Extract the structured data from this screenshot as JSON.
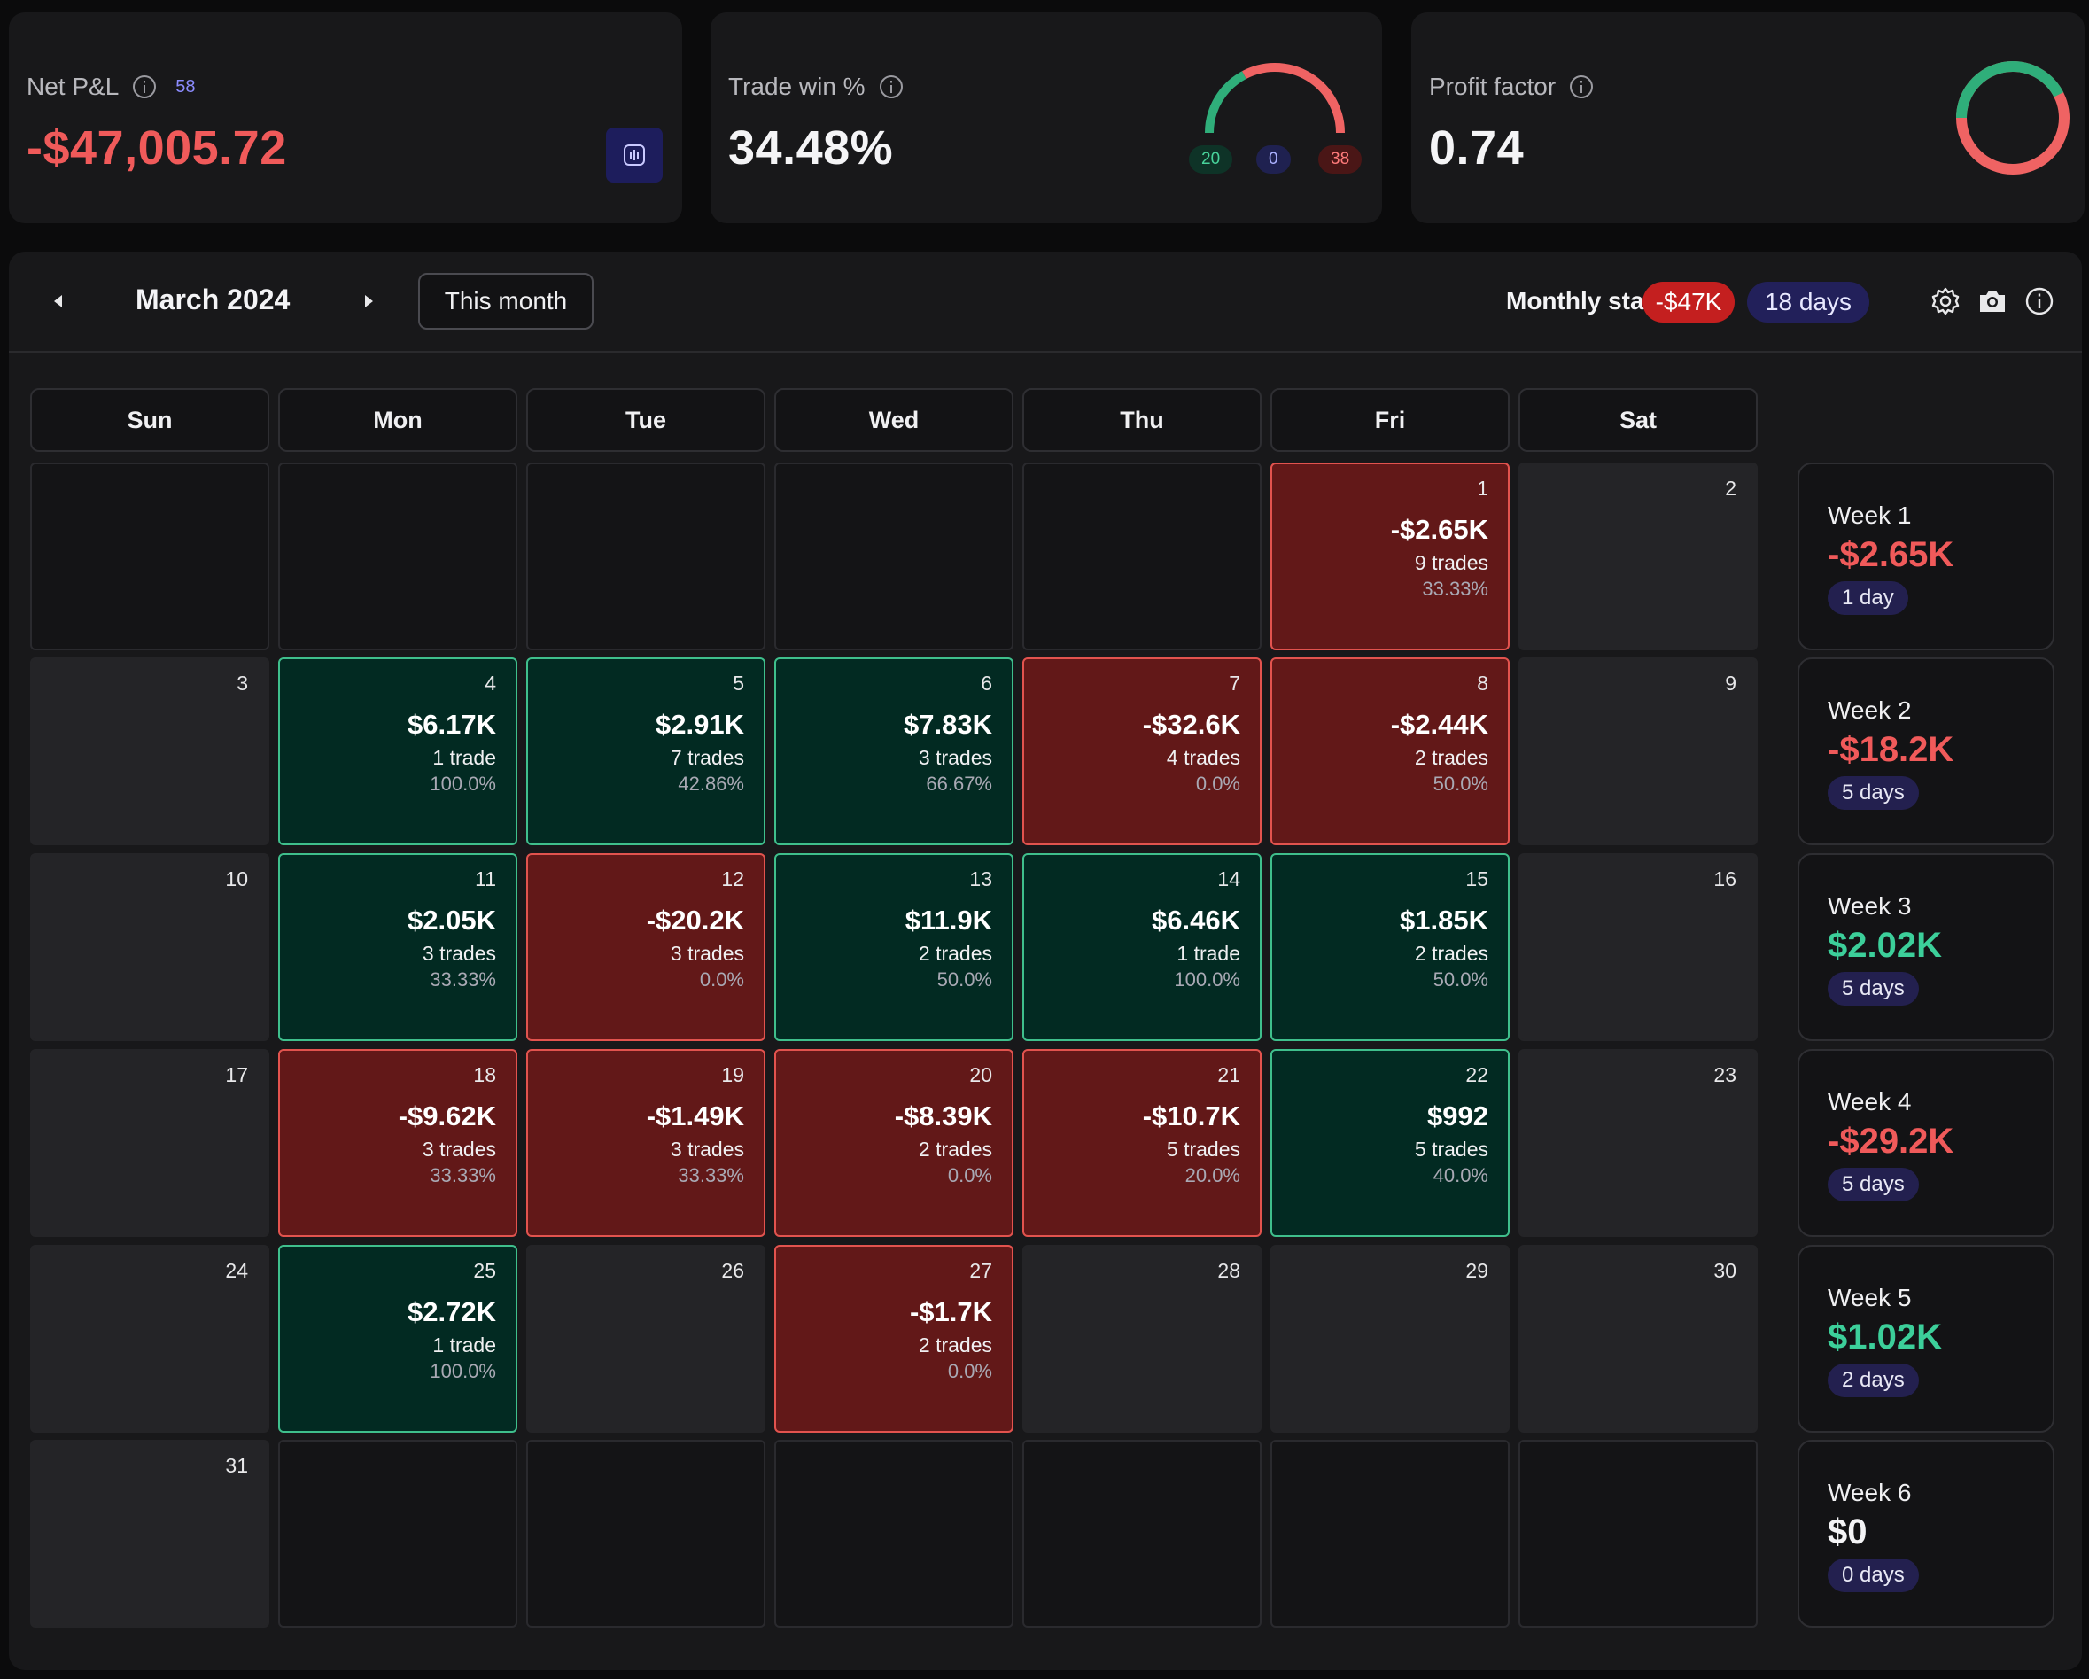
{
  "cards": {
    "net_pnl": {
      "label": "Net P&L",
      "count": "58",
      "value": "-$47,005.72"
    },
    "trade_win": {
      "label": "Trade win %",
      "value": "34.48%",
      "wins": "20",
      "breakeven": "0",
      "losses": "38",
      "win_fraction": 0.3448
    },
    "profit_factor": {
      "label": "Profit factor",
      "value": "0.74",
      "ring_fraction": 0.425
    }
  },
  "calendar": {
    "month": "March 2024",
    "this_month_label": "This month",
    "monthly_stats_label": "Monthly stats:",
    "monthly_pnl": "-$47K",
    "monthly_days": "18 days",
    "weekdays": [
      "Sun",
      "Mon",
      "Tue",
      "Wed",
      "Thu",
      "Fri",
      "Sat"
    ],
    "days": [
      [
        null,
        null,
        null,
        null,
        null,
        {
          "d": "1",
          "pnl": "-$2.65K",
          "trades": "9 trades",
          "wr": "33.33%",
          "type": "loss"
        },
        {
          "d": "2",
          "type": "empty"
        }
      ],
      [
        {
          "d": "3",
          "type": "empty"
        },
        {
          "d": "4",
          "pnl": "$6.17K",
          "trades": "1 trade",
          "wr": "100.0%",
          "type": "win"
        },
        {
          "d": "5",
          "pnl": "$2.91K",
          "trades": "7 trades",
          "wr": "42.86%",
          "type": "win"
        },
        {
          "d": "6",
          "pnl": "$7.83K",
          "trades": "3 trades",
          "wr": "66.67%",
          "type": "win"
        },
        {
          "d": "7",
          "pnl": "-$32.6K",
          "trades": "4 trades",
          "wr": "0.0%",
          "type": "loss"
        },
        {
          "d": "8",
          "pnl": "-$2.44K",
          "trades": "2 trades",
          "wr": "50.0%",
          "type": "loss"
        },
        {
          "d": "9",
          "type": "empty"
        }
      ],
      [
        {
          "d": "10",
          "type": "empty"
        },
        {
          "d": "11",
          "pnl": "$2.05K",
          "trades": "3 trades",
          "wr": "33.33%",
          "type": "win"
        },
        {
          "d": "12",
          "pnl": "-$20.2K",
          "trades": "3 trades",
          "wr": "0.0%",
          "type": "loss"
        },
        {
          "d": "13",
          "pnl": "$11.9K",
          "trades": "2 trades",
          "wr": "50.0%",
          "type": "win"
        },
        {
          "d": "14",
          "pnl": "$6.46K",
          "trades": "1 trade",
          "wr": "100.0%",
          "type": "win"
        },
        {
          "d": "15",
          "pnl": "$1.85K",
          "trades": "2 trades",
          "wr": "50.0%",
          "type": "win"
        },
        {
          "d": "16",
          "type": "empty"
        }
      ],
      [
        {
          "d": "17",
          "type": "empty"
        },
        {
          "d": "18",
          "pnl": "-$9.62K",
          "trades": "3 trades",
          "wr": "33.33%",
          "type": "loss"
        },
        {
          "d": "19",
          "pnl": "-$1.49K",
          "trades": "3 trades",
          "wr": "33.33%",
          "type": "loss"
        },
        {
          "d": "20",
          "pnl": "-$8.39K",
          "trades": "2 trades",
          "wr": "0.0%",
          "type": "loss"
        },
        {
          "d": "21",
          "pnl": "-$10.7K",
          "trades": "5 trades",
          "wr": "20.0%",
          "type": "loss"
        },
        {
          "d": "22",
          "pnl": "$992",
          "trades": "5 trades",
          "wr": "40.0%",
          "type": "win"
        },
        {
          "d": "23",
          "type": "empty"
        }
      ],
      [
        {
          "d": "24",
          "type": "empty"
        },
        {
          "d": "25",
          "pnl": "$2.72K",
          "trades": "1 trade",
          "wr": "100.0%",
          "type": "win"
        },
        {
          "d": "26",
          "type": "empty"
        },
        {
          "d": "27",
          "pnl": "-$1.7K",
          "trades": "2 trades",
          "wr": "0.0%",
          "type": "loss"
        },
        {
          "d": "28",
          "type": "empty"
        },
        {
          "d": "29",
          "type": "empty"
        },
        {
          "d": "30",
          "type": "empty"
        }
      ],
      [
        {
          "d": "31",
          "type": "empty"
        },
        null,
        null,
        null,
        null,
        null,
        null
      ]
    ],
    "weeks": [
      {
        "label": "Week 1",
        "value": "-$2.65K",
        "days": "1 day",
        "tone": "neg"
      },
      {
        "label": "Week 2",
        "value": "-$18.2K",
        "days": "5 days",
        "tone": "neg"
      },
      {
        "label": "Week 3",
        "value": "$2.02K",
        "days": "5 days",
        "tone": "pos"
      },
      {
        "label": "Week 4",
        "value": "-$29.2K",
        "days": "5 days",
        "tone": "neg"
      },
      {
        "label": "Week 5",
        "value": "$1.02K",
        "days": "2 days",
        "tone": "pos"
      },
      {
        "label": "Week 6",
        "value": "$0",
        "days": "0 days",
        "tone": "white"
      }
    ]
  },
  "colors": {
    "win": "#3ccf9a",
    "loss": "#f05a5a",
    "accent": "#1d1d5c"
  },
  "icons": [
    "info-icon",
    "chart-icon",
    "chevron-left-icon",
    "chevron-right-icon",
    "gear-icon",
    "camera-icon"
  ]
}
